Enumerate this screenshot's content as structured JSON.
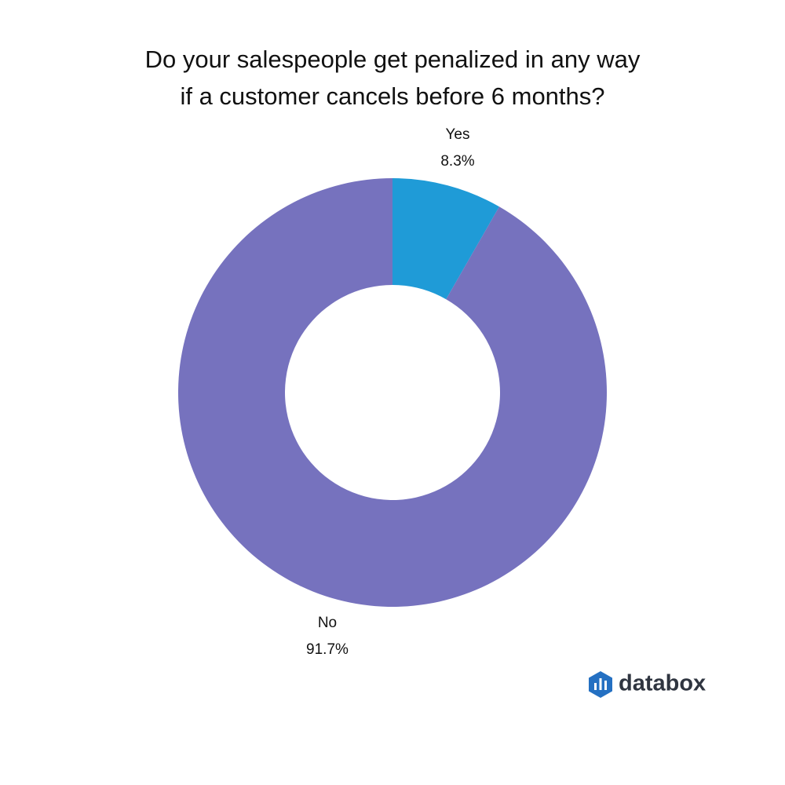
{
  "chart_data": {
    "type": "donut",
    "title": "Do your salespeople get penalized in any way\nif a customer cancels before 6 months?",
    "categories": [
      "Yes",
      "No"
    ],
    "values": [
      8.3,
      91.7
    ],
    "value_labels": [
      "8.3%",
      "91.7%"
    ],
    "colors": [
      "#1f9bd7",
      "#7672be"
    ]
  },
  "brand": "databox"
}
